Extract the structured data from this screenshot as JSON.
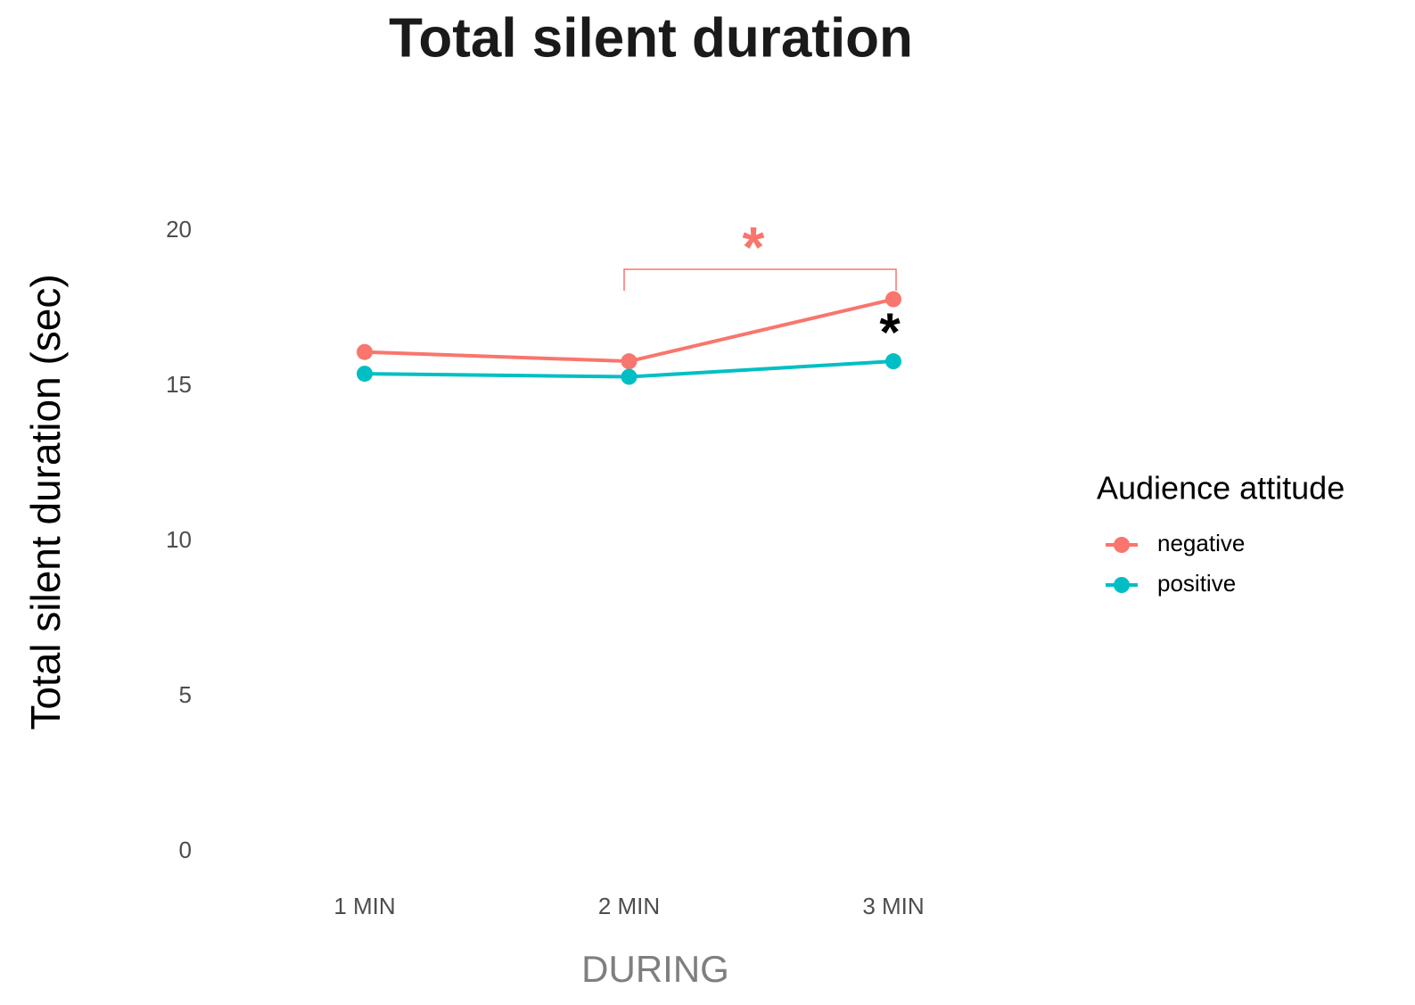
{
  "chart_data": {
    "type": "line",
    "title": "Total silent duration",
    "x_label": "DURING",
    "y_label": "Total silent duration (sec)",
    "categories": [
      "1 MIN",
      "2 MIN",
      "3 MIN"
    ],
    "series": [
      {
        "name": "negative",
        "color": "#f8766d",
        "values": [
          16.1,
          15.8,
          17.8
        ]
      },
      {
        "name": "positive",
        "color": "#00bfc4",
        "values": [
          15.4,
          15.3,
          15.8
        ]
      }
    ],
    "ylim": [
      0,
      20
    ],
    "yticks": [
      0,
      5,
      10,
      15,
      20
    ],
    "grid": false,
    "legend_title": "Audience attitude",
    "legend": "right",
    "annotations": [
      {
        "text": "*",
        "color": "#f8766d"
      },
      {
        "text": "*",
        "color": "#000000"
      }
    ]
  }
}
